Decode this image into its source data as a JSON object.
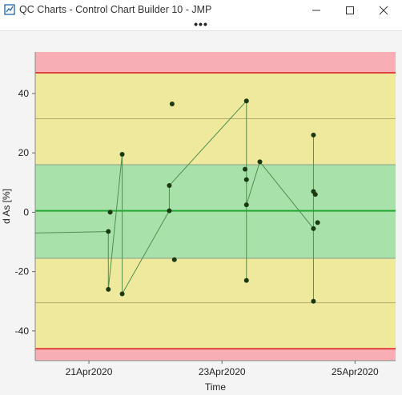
{
  "window": {
    "title": "QC Charts - Control Chart Builder 10 - JMP",
    "more_glyph": "•••",
    "colors": {
      "icon_blue": "#2f6fb3"
    }
  },
  "chart_data": {
    "type": "scatter",
    "title": "",
    "xlabel": "Time",
    "ylabel": "d As [%]",
    "xlim": [
      "2020-04-20T04:38",
      "2020-04-25T14:38"
    ],
    "ylim": [
      -50,
      54
    ],
    "y_ticks": [
      40,
      20,
      0,
      -20,
      -40
    ],
    "y_tick_labels": [
      "40",
      "20",
      "0",
      "-20",
      "-40"
    ],
    "x_ticks": [
      "2020-04-21",
      "2020-04-23",
      "2020-04-25"
    ],
    "x_tick_labels": [
      "21Apr2020",
      "23Apr2020",
      "25Apr2020"
    ],
    "grid": false,
    "legend": "none",
    "zones": [
      {
        "name": "red",
        "from": 47,
        "to": 54,
        "color": "#f8aeb5"
      },
      {
        "name": "yellow",
        "from": 16,
        "to": 47,
        "color": "#efe99d"
      },
      {
        "name": "green",
        "from": -15.5,
        "to": 16,
        "color": "#a9e1aa"
      },
      {
        "name": "yellow",
        "from": -46,
        "to": -15.5,
        "color": "#efe99d"
      },
      {
        "name": "red",
        "from": -50,
        "to": -46,
        "color": "#f8aeb5"
      }
    ],
    "reference_lines": [
      {
        "name": "center",
        "y": 0.5,
        "color": "#22aa33"
      },
      {
        "name": "limit",
        "y": 47,
        "color": "#e0443e"
      },
      {
        "name": "limit",
        "y": -46,
        "color": "#e0443e"
      },
      {
        "name": "sigma",
        "y": 31.5,
        "color": "#b0ae6e"
      },
      {
        "name": "sigma",
        "y": -30.5,
        "color": "#b0ae6e"
      },
      {
        "name": "sigma",
        "y": 16,
        "color": "#8aa08a"
      },
      {
        "name": "sigma",
        "y": -15.5,
        "color": "#8aa08a"
      }
    ],
    "series": [
      {
        "points": [
          {
            "x": "2020-04-21T07:00",
            "y": -26
          },
          {
            "x": "2020-04-21T07:00",
            "y": -6.5
          },
          {
            "x": "2020-04-21T07:40",
            "y": 0
          },
          {
            "x": "2020-04-21T12:00",
            "y": 19.5
          },
          {
            "x": "2020-04-21T12:00",
            "y": -27.5
          },
          {
            "x": "2020-04-22T06:00",
            "y": 36.5
          },
          {
            "x": "2020-04-22T05:00",
            "y": 9
          },
          {
            "x": "2020-04-22T05:00",
            "y": 0.5
          },
          {
            "x": "2020-04-22T06:50",
            "y": -16
          },
          {
            "x": "2020-04-23T08:20",
            "y": 14.5
          },
          {
            "x": "2020-04-23T08:50",
            "y": 37.5
          },
          {
            "x": "2020-04-23T08:50",
            "y": 11
          },
          {
            "x": "2020-04-23T08:50",
            "y": 2.5
          },
          {
            "x": "2020-04-23T08:50",
            "y": -23
          },
          {
            "x": "2020-04-23T13:40",
            "y": 17
          },
          {
            "x": "2020-04-24T09:00",
            "y": 26
          },
          {
            "x": "2020-04-24T09:00",
            "y": 7
          },
          {
            "x": "2020-04-24T09:00",
            "y": -5.5
          },
          {
            "x": "2020-04-24T09:00",
            "y": -30
          },
          {
            "x": "2020-04-24T09:40",
            "y": 6
          },
          {
            "x": "2020-04-24T10:30",
            "y": -3.5
          }
        ],
        "line": [
          {
            "x": "2020-04-20T04:38",
            "y": -7
          },
          {
            "x": "2020-04-21T07:00",
            "y": -6.5
          },
          {
            "x": "2020-04-21T07:00",
            "y": -26
          },
          {
            "x": "2020-04-21T12:00",
            "y": 19.5
          },
          {
            "x": "2020-04-21T12:00",
            "y": -27.5
          },
          {
            "x": "2020-04-22T05:00",
            "y": 0.5
          },
          {
            "x": "2020-04-22T05:00",
            "y": 9
          },
          {
            "x": "2020-04-23T08:50",
            "y": 37.5
          },
          {
            "x": "2020-04-23T08:50",
            "y": -23
          },
          {
            "x": "2020-04-23T08:50",
            "y": 2.5
          },
          {
            "x": "2020-04-23T13:40",
            "y": 17
          },
          {
            "x": "2020-04-24T09:00",
            "y": -5.5
          },
          {
            "x": "2020-04-24T09:00",
            "y": 26
          },
          {
            "x": "2020-04-24T09:00",
            "y": -30
          },
          {
            "x": "2020-04-24T09:00",
            "y": 7
          },
          {
            "x": "2020-04-24T09:40",
            "y": 6
          }
        ],
        "marker_color": "#1a3a12",
        "line_color": "#4f8f4f"
      }
    ]
  }
}
